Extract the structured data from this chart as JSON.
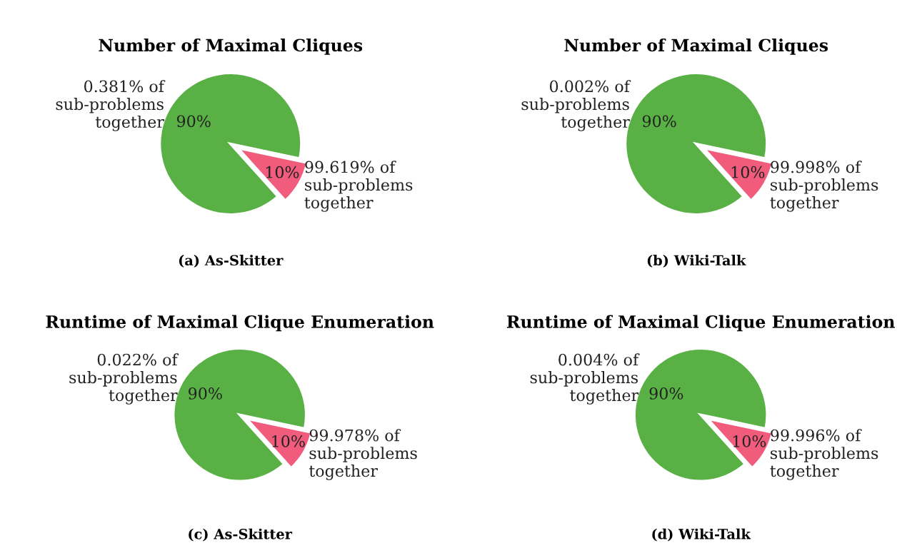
{
  "chart_data": [
    {
      "type": "pie",
      "title": "Number of Maximal Cliques",
      "categories": [
        "0.381% of\nsub-problems\ntogether",
        "99.619% of\nsub-problems\ntogether"
      ],
      "values": [
        90,
        10
      ],
      "colors": [
        "#59b044",
        "#f25c7c"
      ],
      "value_labels": [
        "90%",
        "10%"
      ],
      "annotations": [
        "(a) As-Skitter"
      ]
    },
    {
      "type": "pie",
      "title": "Number of Maximal Cliques",
      "categories": [
        "0.002% of\nsub-problems\ntogether",
        "99.998% of\nsub-problems\ntogether"
      ],
      "values": [
        90,
        10
      ],
      "colors": [
        "#59b044",
        "#f25c7c"
      ],
      "value_labels": [
        "90%",
        "10%"
      ],
      "annotations": [
        "(b) Wiki-Talk"
      ]
    },
    {
      "type": "pie",
      "title": "Runtime of Maximal Clique Enumeration",
      "categories": [
        "0.022% of\nsub-problems\ntogether",
        "99.978% of\nsub-problems\ntogether"
      ],
      "values": [
        90,
        10
      ],
      "colors": [
        "#59b044",
        "#f25c7c"
      ],
      "value_labels": [
        "90%",
        "10%"
      ],
      "annotations": [
        "(c) As-Skitter"
      ]
    },
    {
      "type": "pie",
      "title": "Runtime of Maximal Clique Enumeration",
      "categories": [
        "0.004% of\nsub-problems\ntogether",
        "99.996% of\nsub-problems\ntogether"
      ],
      "values": [
        90,
        10
      ],
      "colors": [
        "#59b044",
        "#f25c7c"
      ],
      "value_labels": [
        "90%",
        "10%"
      ],
      "annotations": [
        "(d) Wiki-Talk"
      ]
    }
  ]
}
